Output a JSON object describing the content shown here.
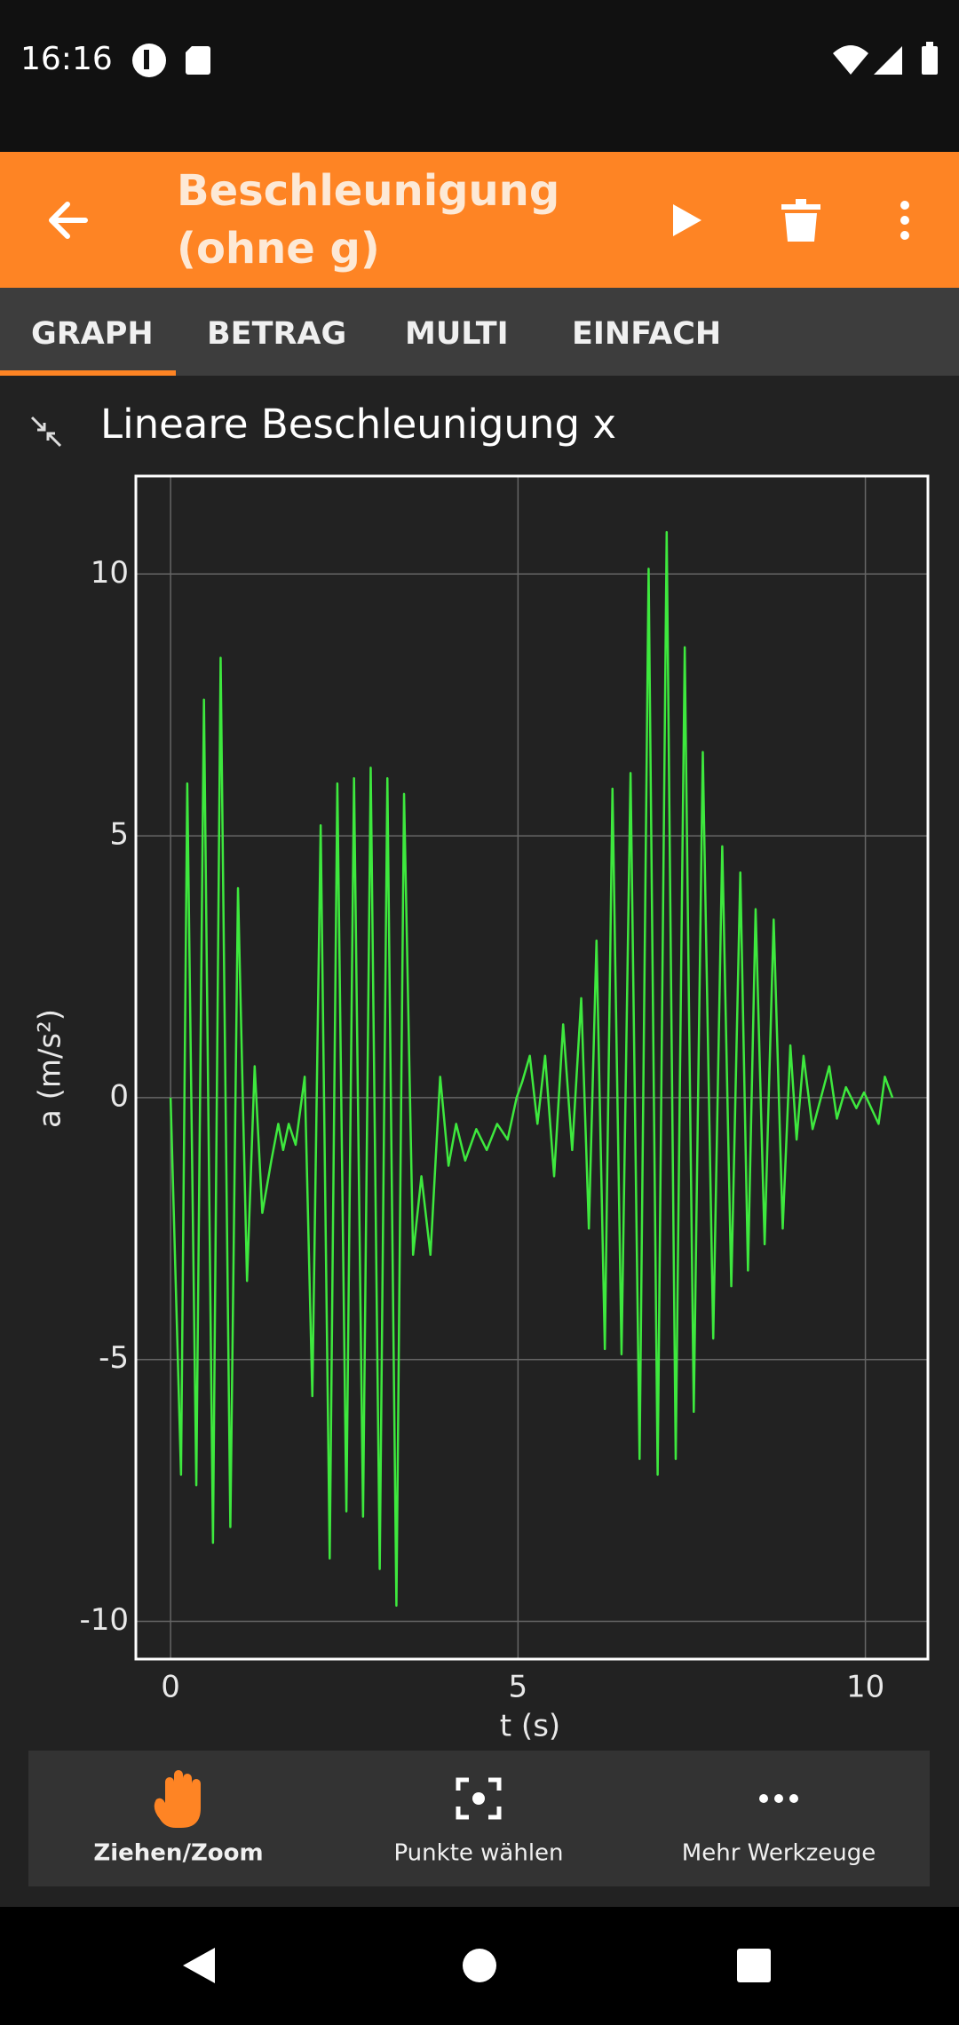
{
  "status_bar": {
    "time": "16:16"
  },
  "app_bar": {
    "title_line1": "Beschleunigung",
    "title_line2": "(ohne g)"
  },
  "tabs": [
    "GRAPH",
    "BETRAG",
    "MULTI",
    "EINFACH"
  ],
  "graph_title": "Lineare Beschleunigung x",
  "chart_data": {
    "type": "line",
    "x_label": "t (s)",
    "y_label": "a (m/s²)",
    "x": [
      0,
      0.15,
      0.24,
      0.37,
      0.48,
      0.61,
      0.72,
      0.86,
      0.97,
      1.1,
      1.21,
      1.32,
      1.45,
      1.55,
      1.62,
      1.7,
      1.8,
      1.93,
      2.04,
      2.16,
      2.29,
      2.4,
      2.53,
      2.64,
      2.77,
      2.88,
      3.01,
      3.12,
      3.25,
      3.36,
      3.49,
      3.61,
      3.74,
      3.88,
      4.0,
      4.11,
      4.24,
      4.4,
      4.55,
      4.7,
      4.85,
      4.98,
      5.06,
      5.17,
      5.28,
      5.39,
      5.52,
      5.65,
      5.78,
      5.91,
      6.02,
      6.13,
      6.25,
      6.36,
      6.49,
      6.62,
      6.75,
      6.88,
      7.01,
      7.14,
      7.27,
      7.4,
      7.53,
      7.66,
      7.81,
      7.94,
      8.07,
      8.2,
      8.31,
      8.42,
      8.55,
      8.68,
      8.81,
      8.92,
      9.01,
      9.11,
      9.24,
      9.48,
      9.59,
      9.72,
      9.87,
      9.98,
      10.19,
      10.28,
      10.39
    ],
    "values": [
      0,
      -7.2,
      6,
      -7.4,
      7.6,
      -8.5,
      8.4,
      -8.2,
      4,
      -3.5,
      0.6,
      -2.2,
      -1.2,
      -0.5,
      -1,
      -0.5,
      -0.9,
      0.4,
      -5.7,
      5.2,
      -8.8,
      6,
      -7.9,
      6.1,
      -8,
      6.3,
      -9,
      6.1,
      -9.7,
      5.8,
      -3,
      -1.5,
      -3,
      0.4,
      -1.3,
      -0.5,
      -1.2,
      -0.6,
      -1,
      -0.5,
      -0.8,
      0,
      0.3,
      0.8,
      -0.5,
      0.8,
      -1.5,
      1.4,
      -1,
      1.9,
      -2.5,
      3,
      -4.8,
      5.9,
      -4.9,
      6.2,
      -6.9,
      10.1,
      -7.2,
      10.8,
      -6.9,
      8.6,
      -6,
      6.6,
      -4.6,
      4.8,
      -3.6,
      4.3,
      -3.3,
      3.6,
      -2.8,
      3.4,
      -2.5,
      1,
      -0.8,
      0.8,
      -0.6,
      0.6,
      -0.4,
      0.2,
      -0.2,
      0.1,
      -0.5,
      0.4,
      0
    ],
    "color": "#3ee83e",
    "xlim": [
      -0.5,
      10.9
    ],
    "ylim": [
      -10.72,
      11.87
    ],
    "xticks": [
      0,
      5,
      10
    ],
    "yticks": [
      -10,
      -5,
      0,
      5,
      10
    ],
    "grid": true
  },
  "toolbar": [
    "Ziehen/Zoom",
    "Punkte wählen",
    "Mehr Werkzeuge"
  ]
}
